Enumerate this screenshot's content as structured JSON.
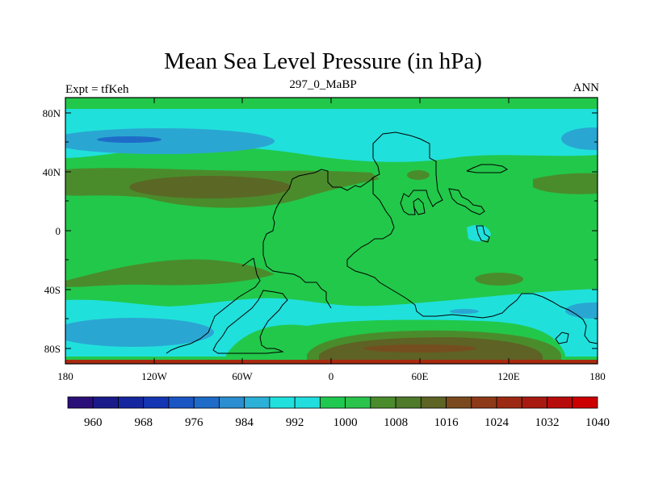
{
  "title": "Mean Sea Level Pressure (in hPa)",
  "left_string": "Expt = tfKeh",
  "center_string": "297_0_MaBP",
  "right_string": "ANN",
  "y_ticks": [
    "80N",
    "40N",
    "0",
    "40S",
    "80S"
  ],
  "x_ticks": [
    "180",
    "120W",
    "60W",
    "0",
    "60E",
    "120E",
    "180"
  ],
  "colorbar": {
    "colors": [
      "#2a0f78",
      "#1b1a8a",
      "#1626a0",
      "#1436b4",
      "#1a55c4",
      "#1e6cc8",
      "#2a8ed0",
      "#2bb0d8",
      "#1fe0dc",
      "#22dddd",
      "#1fc84f",
      "#2ac44c",
      "#4a8c2c",
      "#4e7a2a",
      "#5d6424",
      "#7a4a1e",
      "#8e3a18",
      "#9c2a12",
      "#a81a10",
      "#b80c0c",
      "#cc0000"
    ],
    "labels": [
      "960",
      "968",
      "976",
      "984",
      "992",
      "1000",
      "1008",
      "1016",
      "1024",
      "1032",
      "1040"
    ]
  }
}
